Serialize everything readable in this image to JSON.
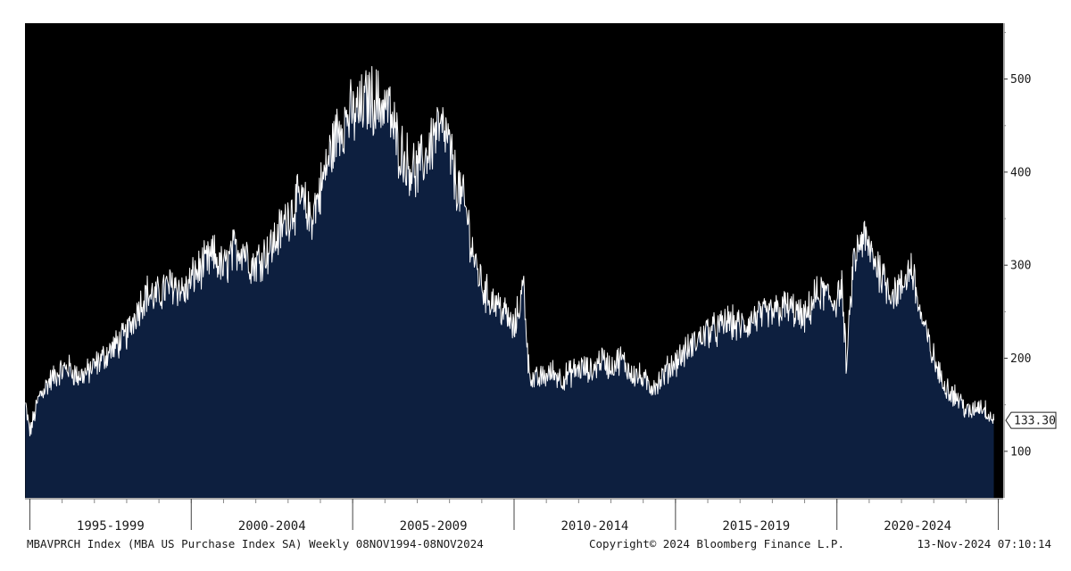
{
  "footer": {
    "index_desc": "MBAVPRCH Index (MBA US Purchase Index SA)  Weekly 08NOV1994-08NOV2024",
    "copyright": "Copyright© 2024 Bloomberg Finance L.P.",
    "timestamp": "13-Nov-2024 07:10:14"
  },
  "colors": {
    "background": "#000000",
    "area_fill": "#0d1f3f",
    "line": "#ffffff",
    "page": "#ffffff",
    "text": "#1a1a1a"
  },
  "chart_data": {
    "type": "area",
    "title": "",
    "xlabel": "",
    "ylabel": "",
    "ylim": [
      50,
      560
    ],
    "xlim": [
      1994.85,
      2025.15
    ],
    "y_ticks": [
      100,
      200,
      300,
      400,
      500
    ],
    "periods": [
      {
        "label": "1995-1999",
        "start": 1995,
        "end": 2000
      },
      {
        "label": "2000-2004",
        "start": 2000,
        "end": 2005
      },
      {
        "label": "2005-2009",
        "start": 2005,
        "end": 2010
      },
      {
        "label": "2010-2014",
        "start": 2010,
        "end": 2015
      },
      {
        "label": "2015-2019",
        "start": 2015,
        "end": 2020
      },
      {
        "label": "2020-2024",
        "start": 2020,
        "end": 2025
      }
    ],
    "last_value": {
      "x": 2024.86,
      "y": 133.3,
      "label": "133.30"
    },
    "series": [
      {
        "frequency": "weekly",
        "x": [
          1994.86,
          1995.0,
          1995.3,
          1995.6,
          1995.9,
          1996.2,
          1996.5,
          1996.8,
          1997.1,
          1997.4,
          1997.7,
          1998.0,
          1998.3,
          1998.6,
          1998.9,
          1999.2,
          1999.5,
          1999.8,
          2000.1,
          2000.4,
          2000.7,
          2001.0,
          2001.3,
          2001.6,
          2001.9,
          2002.2,
          2002.5,
          2002.8,
          2003.1,
          2003.4,
          2003.7,
          2004.0,
          2004.3,
          2004.6,
          2004.9,
          2005.2,
          2005.5,
          2005.8,
          2006.1,
          2006.4,
          2006.7,
          2007.0,
          2007.3,
          2007.6,
          2007.9,
          2008.2,
          2008.5,
          2008.8,
          2009.1,
          2009.4,
          2009.7,
          2010.0,
          2010.3,
          2010.45,
          2010.6,
          2010.9,
          2011.2,
          2011.5,
          2011.8,
          2012.1,
          2012.4,
          2012.7,
          2013.0,
          2013.3,
          2013.6,
          2013.9,
          2014.2,
          2014.5,
          2014.8,
          2015.1,
          2015.4,
          2015.7,
          2016.0,
          2016.3,
          2016.6,
          2016.9,
          2017.2,
          2017.5,
          2017.8,
          2018.1,
          2018.4,
          2018.7,
          2019.0,
          2019.3,
          2019.6,
          2019.9,
          2020.15,
          2020.3,
          2020.5,
          2020.8,
          2021.1,
          2021.4,
          2021.7,
          2022.0,
          2022.3,
          2022.6,
          2022.9,
          2023.2,
          2023.5,
          2023.8,
          2024.1,
          2024.4,
          2024.6,
          2024.86
        ],
        "values": [
          150,
          120,
          160,
          175,
          185,
          190,
          180,
          185,
          195,
          205,
          215,
          225,
          250,
          270,
          265,
          275,
          280,
          270,
          290,
          300,
          310,
          295,
          315,
          320,
          300,
          310,
          320,
          340,
          360,
          370,
          350,
          380,
          420,
          450,
          460,
          465,
          480,
          475,
          470,
          430,
          410,
          400,
          420,
          445,
          440,
          390,
          360,
          300,
          270,
          260,
          250,
          230,
          280,
          190,
          175,
          180,
          185,
          178,
          185,
          190,
          185,
          200,
          190,
          200,
          185,
          180,
          170,
          175,
          190,
          200,
          210,
          220,
          230,
          230,
          240,
          235,
          235,
          245,
          245,
          250,
          255,
          250,
          240,
          265,
          270,
          260,
          275,
          190,
          300,
          330,
          310,
          290,
          270,
          275,
          300,
          245,
          210,
          180,
          165,
          155,
          140,
          150,
          145,
          133.3
        ]
      }
    ]
  }
}
